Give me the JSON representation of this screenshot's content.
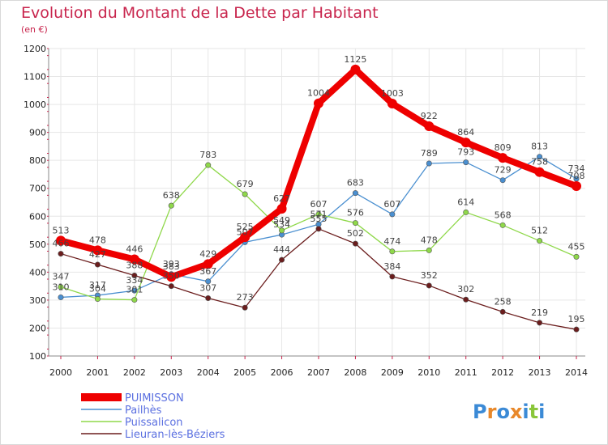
{
  "chart_data": {
    "type": "line",
    "title": "Evolution du Montant de la Dette par Habitant",
    "subtitle": "(en €)",
    "x": [
      "2000",
      "2001",
      "2002",
      "2003",
      "2004",
      "2005",
      "2006",
      "2007",
      "2008",
      "2009",
      "2010",
      "2011",
      "2012",
      "2013",
      "2014"
    ],
    "ylim": [
      100,
      1200
    ],
    "yticks": [
      100,
      200,
      300,
      400,
      500,
      600,
      700,
      800,
      900,
      1000,
      1100,
      1200
    ],
    "grid": true,
    "legend_position": "bottom-left",
    "series": [
      {
        "name": "PUIMISSON",
        "color": "#ee0000",
        "values": [
          513,
          478,
          446,
          383,
          429,
          525,
          627,
          1004,
          1125,
          1003,
          922,
          864,
          809,
          758,
          708
        ]
      },
      {
        "name": "Pailhès",
        "color": "#4a8fd0",
        "values": [
          310,
          317,
          334,
          393,
          367,
          507,
          534,
          571,
          683,
          607,
          789,
          793,
          729,
          813,
          734
        ]
      },
      {
        "name": "Puissalicon",
        "color": "#8fd84a",
        "values": [
          347,
          304,
          301,
          638,
          783,
          679,
          549,
          607,
          576,
          474,
          478,
          614,
          568,
          512,
          455
        ]
      },
      {
        "name": "Lieuran-lès-Béziers",
        "color": "#6b1d1d",
        "values": [
          466,
          427,
          388,
          350,
          307,
          273,
          444,
          555,
          502,
          384,
          352,
          302,
          258,
          219,
          195
        ]
      }
    ]
  },
  "logo": {
    "text": "Proxiti"
  }
}
